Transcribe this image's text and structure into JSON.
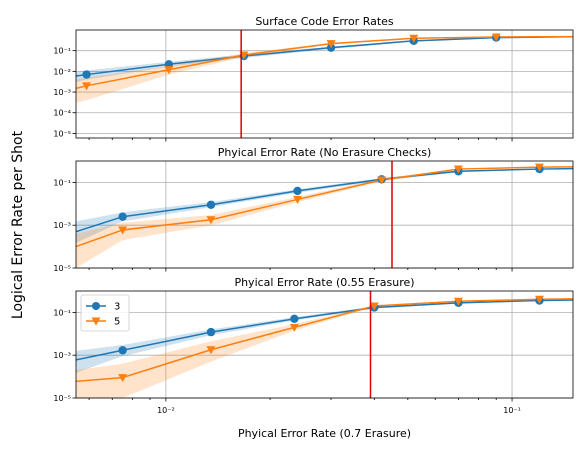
{
  "chart_data": {
    "type": "line",
    "ylabel": "Logical Error Rate per Shot",
    "xscale": "log",
    "yscale": "log",
    "xlim": [
      0.0055,
      0.15
    ],
    "x_tick_labels": [
      "10⁻²",
      "10⁻¹"
    ],
    "grid": true,
    "legend": {
      "placement": "upper-left",
      "panel": 2
    },
    "colors": {
      "series_3": "#1f77b4",
      "series_5": "#ff7f0e",
      "threshold": "#e00000"
    },
    "panels": [
      {
        "title": "Surface Code Error Rates",
        "xlabel": "",
        "ylim": [
          6e-06,
          1
        ],
        "y_tick_labels": [
          "10⁻⁵",
          "10⁻⁴",
          "10⁻³",
          "10⁻²",
          "10⁻¹"
        ],
        "threshold_x": 0.0165,
        "series": [
          {
            "name": "3",
            "marker": "circle",
            "x": [
              0.0055,
              0.0059,
              0.0102,
              0.0168,
              0.03,
              0.052,
              0.09,
              0.15
            ],
            "y": [
              0.006,
              0.007,
              0.022,
              0.055,
              0.14,
              0.3,
              0.43,
              0.47
            ],
            "low": [
              0.003,
              0.004,
              0.017,
              0.045,
              0.12,
              0.27,
              0.41,
              0.45
            ],
            "high": [
              0.009,
              0.011,
              0.029,
              0.066,
              0.16,
              0.33,
              0.45,
              0.49
            ]
          },
          {
            "name": "5",
            "marker": "triangle",
            "x": [
              0.0055,
              0.0059,
              0.0102,
              0.0168,
              0.03,
              0.052,
              0.09,
              0.15
            ],
            "y": [
              0.0015,
              0.002,
              0.012,
              0.062,
              0.22,
              0.4,
              0.46,
              0.48
            ],
            "low": [
              0.0003,
              0.0004,
              0.007,
              0.05,
              0.2,
              0.37,
              0.44,
              0.46
            ],
            "high": [
              0.004,
              0.005,
              0.018,
              0.075,
              0.24,
              0.43,
              0.48,
              0.5
            ]
          }
        ]
      },
      {
        "title": "Phyical Error Rate (No Erasure Checks)",
        "xlabel": "",
        "ylim": [
          1e-05,
          1
        ],
        "y_tick_labels": [
          "10⁻⁵",
          "10⁻³",
          "10⁻¹"
        ],
        "threshold_x": 0.045,
        "series": [
          {
            "name": "3",
            "marker": "circle",
            "x": [
              0.0055,
              0.0075,
              0.0135,
              0.024,
              0.042,
              0.07,
              0.12,
              0.15
            ],
            "y": [
              0.0005,
              0.0025,
              0.009,
              0.04,
              0.14,
              0.33,
              0.42,
              0.44
            ],
            "low": [
              0.00015,
              0.0015,
              0.007,
              0.033,
              0.12,
              0.3,
              0.4,
              0.42
            ],
            "high": [
              0.0015,
              0.004,
              0.012,
              0.048,
              0.16,
              0.36,
              0.44,
              0.46
            ]
          },
          {
            "name": "5",
            "marker": "triangle",
            "x": [
              0.0055,
              0.0075,
              0.0135,
              0.024,
              0.042,
              0.07,
              0.12,
              0.15
            ],
            "y": [
              0.0001,
              0.0006,
              0.0018,
              0.016,
              0.13,
              0.42,
              0.52,
              0.53
            ],
            "low": [
              1e-05,
              0.0002,
              0.001,
              0.012,
              0.11,
              0.39,
              0.5,
              0.51
            ],
            "high": [
              0.0004,
              0.0013,
              0.003,
              0.021,
              0.15,
              0.45,
              0.54,
              0.55
            ]
          }
        ]
      },
      {
        "title": "Phyical Error Rate (0.55 Erasure)",
        "xlabel": "Phyical Error Rate (0.7 Erasure)",
        "ylim": [
          1e-05,
          1
        ],
        "y_tick_labels": [
          "10⁻⁵",
          "10⁻³",
          "10⁻¹"
        ],
        "threshold_x": 0.039,
        "series": [
          {
            "name": "3",
            "marker": "circle",
            "x": [
              0.0055,
              0.0075,
              0.0135,
              0.0235,
              0.04,
              0.07,
              0.12,
              0.15
            ],
            "y": [
              0.0006,
              0.0017,
              0.012,
              0.05,
              0.17,
              0.28,
              0.36,
              0.38
            ],
            "low": [
              0.00015,
              0.0009,
              0.0085,
              0.042,
              0.15,
              0.26,
              0.34,
              0.36
            ],
            "high": [
              0.0016,
              0.003,
              0.016,
              0.06,
              0.19,
              0.3,
              0.38,
              0.4
            ]
          },
          {
            "name": "5",
            "marker": "triangle",
            "x": [
              0.0055,
              0.0075,
              0.0135,
              0.0235,
              0.04,
              0.07,
              0.12,
              0.15
            ],
            "y": [
              6e-05,
              9e-05,
              0.0018,
              0.02,
              0.2,
              0.33,
              0.41,
              0.43
            ],
            "low": [
              1e-05,
              1e-05,
              0.0005,
              0.014,
              0.18,
              0.31,
              0.39,
              0.41
            ],
            "high": [
              0.0002,
              0.0004,
              0.0045,
              0.028,
              0.22,
              0.35,
              0.43,
              0.45
            ]
          }
        ]
      }
    ]
  }
}
